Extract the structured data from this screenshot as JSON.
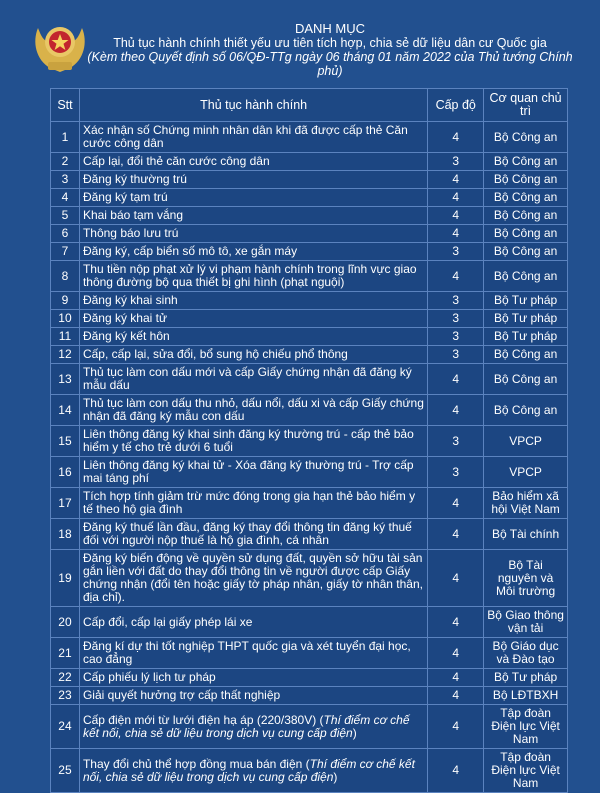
{
  "header": {
    "title": "DANH MỤC",
    "subtitle": "Thủ tục hành chính thiết yếu ưu tiên tích hợp, chia sẻ dữ liệu dân cư Quốc gia",
    "note": "(Kèm theo Quyết định số 06/QĐ-TTg ngày 06 tháng 01 năm 2022 của Thủ tướng Chính phủ)"
  },
  "table": {
    "columns": [
      "Stt",
      "Thủ tục hành chính",
      "Cấp độ",
      "Cơ quan chủ trì"
    ],
    "rows": [
      {
        "stt": "1",
        "name": "Xác nhận số Chứng minh nhân dân khi đã được cấp thẻ Căn cước công dân",
        "name_italic": "",
        "name_end": "",
        "level": "4",
        "org": "Bộ Công an"
      },
      {
        "stt": "2",
        "name": "Cấp lại, đổi thẻ căn cước công dân",
        "name_italic": "",
        "name_end": "",
        "level": "3",
        "org": "Bộ Công an"
      },
      {
        "stt": "3",
        "name": "Đăng ký thường trú",
        "name_italic": "",
        "name_end": "",
        "level": "4",
        "org": "Bộ Công an"
      },
      {
        "stt": "4",
        "name": "Đăng ký tạm trú",
        "name_italic": "",
        "name_end": "",
        "level": "4",
        "org": "Bộ Công an"
      },
      {
        "stt": "5",
        "name": "Khai báo tạm vắng",
        "name_italic": "",
        "name_end": "",
        "level": "4",
        "org": "Bộ Công an"
      },
      {
        "stt": "6",
        "name": "Thông báo lưu trú",
        "name_italic": "",
        "name_end": "",
        "level": "4",
        "org": "Bộ Công an"
      },
      {
        "stt": "7",
        "name": "Đăng ký, cấp biển số mô tô, xe gắn máy",
        "name_italic": "",
        "name_end": "",
        "level": "3",
        "org": "Bộ Công an"
      },
      {
        "stt": "8",
        "name": "Thu tiền nộp phạt xử lý vi phạm hành chính trong lĩnh vực giao thông đường bộ qua thiết bị ghi hình (phạt nguội)",
        "name_italic": "",
        "name_end": "",
        "level": "4",
        "org": "Bộ Công an"
      },
      {
        "stt": "9",
        "name": "Đăng ký khai sinh",
        "name_italic": "",
        "name_end": "",
        "level": "3",
        "org": "Bộ Tư pháp"
      },
      {
        "stt": "10",
        "name": "Đăng ký khai tử",
        "name_italic": "",
        "name_end": "",
        "level": "3",
        "org": "Bộ Tư pháp"
      },
      {
        "stt": "11",
        "name": "Đăng ký kết hôn",
        "name_italic": "",
        "name_end": "",
        "level": "3",
        "org": "Bộ Tư pháp"
      },
      {
        "stt": "12",
        "name": "Cấp, cấp lại, sửa đổi, bổ sung hộ chiếu phổ thông",
        "name_italic": "",
        "name_end": "",
        "level": "3",
        "org": "Bộ Công an"
      },
      {
        "stt": "13",
        "name": "Thủ tục làm con dấu mới và cấp Giấy chứng nhận đã đăng ký mẫu dấu",
        "name_italic": "",
        "name_end": "",
        "level": "4",
        "org": "Bộ Công an"
      },
      {
        "stt": "14",
        "name": "Thủ tục làm con dấu thu nhỏ, dấu nổi, dấu xi và cấp Giấy chứng nhận đã đăng ký mẫu con dấu",
        "name_italic": "",
        "name_end": "",
        "level": "4",
        "org": "Bộ Công an"
      },
      {
        "stt": "15",
        "name": "Liên thông đăng ký khai sinh đăng ký thường trú - cấp thẻ bảo hiểm y tế cho trẻ dưới 6 tuổi",
        "name_italic": "",
        "name_end": "",
        "level": "3",
        "org": "VPCP"
      },
      {
        "stt": "16",
        "name": "Liên thông đăng ký khai tử - Xóa đăng ký thường trú - Trợ cấp mai táng phí",
        "name_italic": "",
        "name_end": "",
        "level": "3",
        "org": "VPCP"
      },
      {
        "stt": "17",
        "name": "Tích hợp tính giảm trừ mức đóng trong gia hạn thẻ bảo hiểm y tế theo hộ gia đình",
        "name_italic": "",
        "name_end": "",
        "level": "4",
        "org": "Bảo hiểm xã hội Việt Nam"
      },
      {
        "stt": "18",
        "name": "Đăng ký thuế lần đầu, đăng ký thay đổi thông tin đăng ký thuế đối với người nộp thuế là hộ gia đình, cá nhân",
        "name_italic": "",
        "name_end": "",
        "level": "4",
        "org": "Bộ Tài chính"
      },
      {
        "stt": "19",
        "name": "Đăng ký biến động về quyền sử dụng đất, quyền sở hữu tài sản gắn liền với đất do thay đổi thông tin về người được cấp Giấy chứng nhận (đổi tên hoặc giấy tờ pháp nhân, giấy tờ nhân thân, địa chỉ).",
        "name_italic": "",
        "name_end": "",
        "level": "4",
        "org": "Bộ Tài nguyên và Môi trường"
      },
      {
        "stt": "20",
        "name": "Cấp đổi, cấp lại giấy phép lái xe",
        "name_italic": "",
        "name_end": "",
        "level": "4",
        "org": "Bộ Giao thông vận tải"
      },
      {
        "stt": "21",
        "name": "Đăng kí dự thi tốt nghiệp THPT quốc gia và xét tuyển đại học, cao đẳng",
        "name_italic": "",
        "name_end": "",
        "level": "4",
        "org": "Bộ Giáo dục và Đào tạo"
      },
      {
        "stt": "22",
        "name": "Cấp phiếu lý lịch tư pháp",
        "name_italic": "",
        "name_end": "",
        "level": "4",
        "org": "Bộ Tư pháp"
      },
      {
        "stt": "23",
        "name": "Giải quyết hưởng trợ cấp thất nghiệp",
        "name_italic": "",
        "name_end": "",
        "level": "4",
        "org": "Bộ LĐTBXH"
      },
      {
        "stt": "24",
        "name": "Cấp điện mới từ lưới điện hạ áp (220/380V) (",
        "name_italic": "Thí điểm cơ chế kết nối, chia sẻ dữ liệu trong dịch vụ cung cấp điện",
        "name_end": ")",
        "level": "4",
        "org": "Tập đoàn Điện lực Việt Nam"
      },
      {
        "stt": "25",
        "name": "Thay đổi chủ thể hợp đồng mua bán điện (",
        "name_italic": "Thí điểm cơ chế kết nối, chia sẻ dữ liệu trong dịch vụ cung cấp điện",
        "name_end": ")",
        "level": "4",
        "org": "Tập đoàn Điện lực Việt Nam"
      }
    ]
  },
  "colors": {
    "background": "#22508f",
    "cell": "#1c4682",
    "border": "#5b83bf",
    "emblem_gold": "#d9b24a",
    "emblem_red": "#c2262e"
  },
  "icons": {
    "emblem": "police-emblem"
  }
}
